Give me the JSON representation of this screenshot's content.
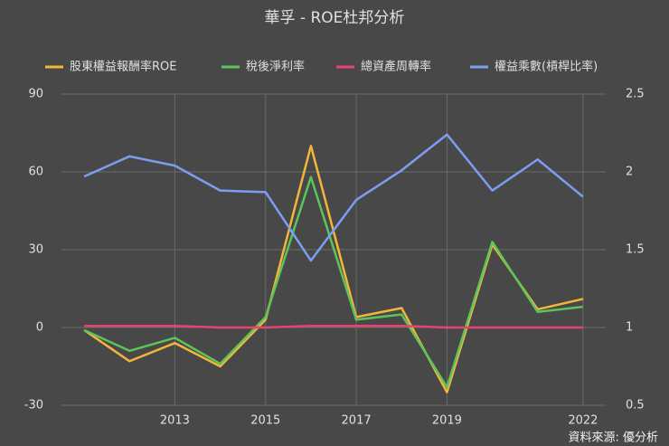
{
  "chart_data": {
    "type": "line",
    "title": "華孚 - ROE杜邦分析",
    "x": [
      2011,
      2012,
      2013,
      2014,
      2015,
      2016,
      2017,
      2018,
      2019,
      2020,
      2021,
      2022
    ],
    "xlim": [
      2010.5,
      2022.5
    ],
    "xticks": [
      2013,
      2015,
      2017,
      2019,
      2022
    ],
    "ylim": [
      -30,
      90
    ],
    "yticks": [
      -30,
      0,
      30,
      60,
      90
    ],
    "y2lim": [
      0.5,
      2.5
    ],
    "y2ticks": [
      0.5,
      1,
      1.5,
      2,
      2.5
    ],
    "grid": true,
    "legend": "top",
    "series": [
      {
        "name": "股東權益報酬率ROE",
        "color": "#f4b63a",
        "values": [
          -1,
          -13,
          -6,
          -15,
          3,
          70,
          4,
          7.5,
          -25,
          32,
          7,
          11
        ]
      },
      {
        "name": "稅後淨利率",
        "color": "#5dc35d",
        "values": [
          -1,
          -9,
          -4,
          -14,
          4,
          58,
          3,
          5,
          -23,
          33,
          6,
          8
        ]
      },
      {
        "name": "總資產周轉率",
        "color": "#e8436e",
        "axis": "y2",
        "values": [
          1.01,
          1.01,
          1.01,
          1.0,
          1.0,
          1.01,
          1.01,
          1.01,
          1.0,
          1.0,
          1.0,
          1.0
        ]
      },
      {
        "name": "權益乘數(槓桿比率)",
        "color": "#7c9ef0",
        "axis": "y2",
        "values": [
          1.97,
          2.1,
          2.04,
          1.88,
          1.87,
          1.43,
          1.82,
          2.01,
          2.24,
          1.88,
          2.08,
          1.84
        ]
      }
    ],
    "source": "資料來源: 優分析"
  }
}
